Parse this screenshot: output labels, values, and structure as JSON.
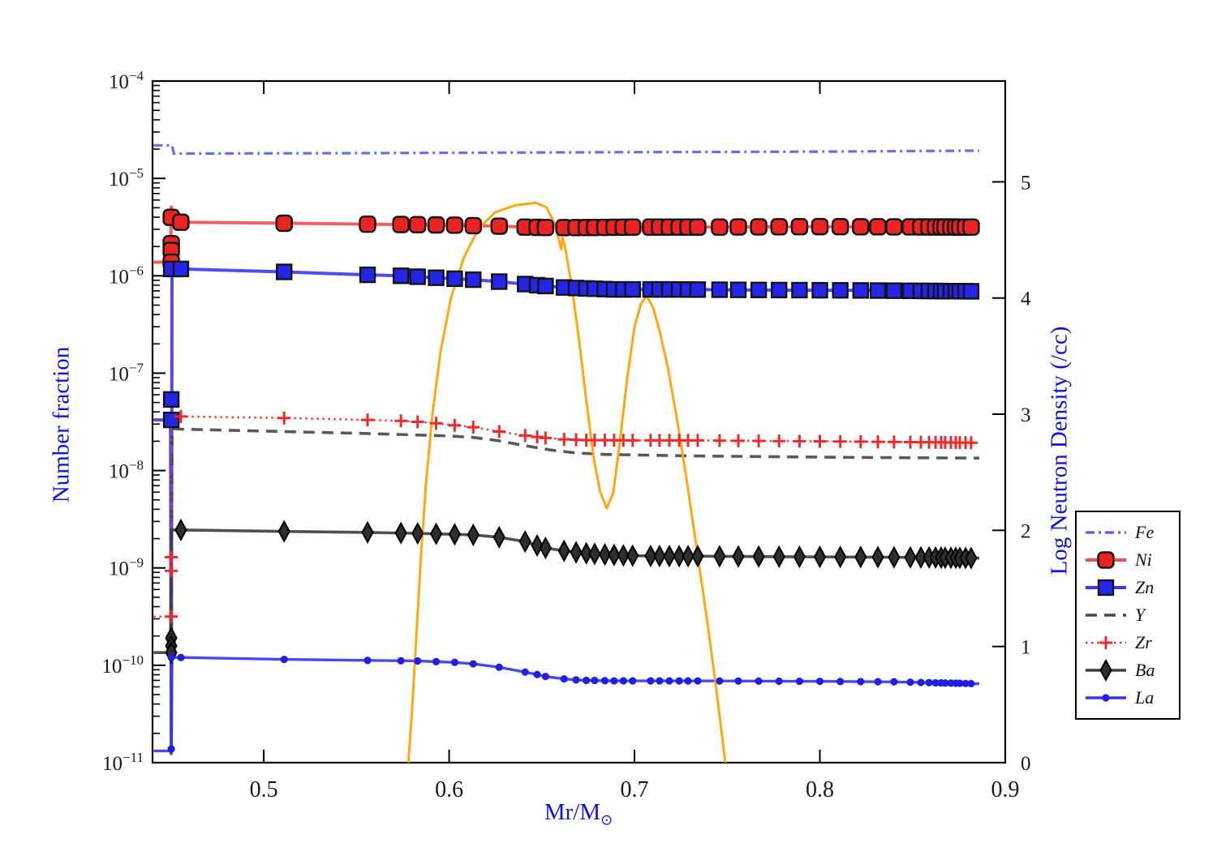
{
  "figure": {
    "xlabel_main": "Mr/M",
    "xlabel_sub": "⊙",
    "ylabel_left": "Number fraction",
    "ylabel_right": "Log Neutron Density (/cc)",
    "label_color": "#1111dd",
    "tick_label_color": "#1a1a1a",
    "background_color": "#ffffff",
    "border_color": "#000000"
  },
  "chart_data": {
    "type": "line",
    "title": "",
    "xlabel": "Mr/M⊙",
    "ylabel_left": "Number fraction",
    "ylabel_right": "Log Neutron Density (/cc)",
    "x_axis": {
      "range": [
        0.44,
        0.9
      ],
      "ticks": [
        0.5,
        0.6,
        0.7,
        0.8,
        0.9
      ]
    },
    "y_axis_left": {
      "scale": "log",
      "tick_exponents": [
        -4,
        -5,
        -6,
        -7,
        -8,
        -9,
        -10,
        -11
      ]
    },
    "y_axis_right": {
      "range": [
        0,
        5.868
      ],
      "ticks": [
        0,
        1,
        2,
        3,
        4,
        5
      ]
    },
    "grid": false,
    "legend_position": "right-outside",
    "legend_entries": [
      "Fe",
      "Ni",
      "Zn",
      "Y",
      "Zr",
      "Ba",
      "La"
    ],
    "markers_x": [
      0.4553,
      0.511,
      0.556,
      0.574,
      0.583,
      0.593,
      0.603,
      0.613,
      0.627,
      0.641,
      0.6475,
      0.652,
      0.662,
      0.6685,
      0.674,
      0.6785,
      0.684,
      0.689,
      0.694,
      0.699,
      0.7087,
      0.7135,
      0.7188,
      0.7241,
      0.7289,
      0.7341,
      0.7459,
      0.756,
      0.767,
      0.778,
      0.789,
      0.8,
      0.811,
      0.822,
      0.8313,
      0.84,
      0.8488,
      0.8545,
      0.8589,
      0.8624,
      0.8654,
      0.8676,
      0.8707,
      0.8733,
      0.8755,
      0.8786,
      0.8816
    ],
    "series": [
      {
        "name": "Fe",
        "axis": "left",
        "color": "#5a5af2",
        "line": "dashdot",
        "line_width": 3.2,
        "marker": "none",
        "marker_fill": "",
        "points": [
          [
            0.4406,
            -4.66
          ],
          [
            0.4505,
            -4.66
          ],
          [
            0.4515,
            -4.745
          ],
          [
            0.56,
            -4.74
          ],
          [
            0.7,
            -4.73
          ],
          [
            0.8,
            -4.725
          ],
          [
            0.886,
            -4.715
          ]
        ],
        "extra_markers": []
      },
      {
        "name": "Ni",
        "axis": "left",
        "color": "#f24c4c",
        "line": "solid",
        "line_width": 4,
        "marker": "roundsquare",
        "marker_fill": "#ea2323",
        "points": [
          [
            0.4406,
            -5.86
          ],
          [
            0.4497,
            -5.86
          ],
          [
            0.4501,
            -5.28
          ],
          [
            0.451,
            -5.44
          ],
          [
            0.4553,
            -5.45
          ],
          [
            0.511,
            -5.46
          ],
          [
            0.556,
            -5.47
          ],
          [
            0.583,
            -5.475
          ],
          [
            0.603,
            -5.48
          ],
          [
            0.613,
            -5.485
          ],
          [
            0.627,
            -5.49
          ],
          [
            0.641,
            -5.5
          ],
          [
            0.655,
            -5.505
          ],
          [
            0.67,
            -5.505
          ],
          [
            0.7,
            -5.5
          ],
          [
            0.74,
            -5.5
          ],
          [
            0.8,
            -5.495
          ],
          [
            0.886,
            -5.5
          ]
        ],
        "extra_markers": [
          [
            0.4501,
            -5.4
          ],
          [
            0.4501,
            -5.67
          ],
          [
            0.4501,
            -5.74
          ],
          [
            0.4501,
            -5.86
          ]
        ]
      },
      {
        "name": "Zn",
        "axis": "left",
        "color": "#3a3aef",
        "line": "solid",
        "line_width": 4,
        "marker": "square",
        "marker_fill": "#2525e9",
        "points": [
          [
            0.4406,
            -7.48
          ],
          [
            0.4497,
            -7.48
          ],
          [
            0.4501,
            -10.9
          ],
          [
            0.4505,
            -5.93
          ],
          [
            0.4553,
            -5.93
          ],
          [
            0.511,
            -5.96
          ],
          [
            0.556,
            -5.99
          ],
          [
            0.574,
            -6.0
          ],
          [
            0.593,
            -6.02
          ],
          [
            0.613,
            -6.04
          ],
          [
            0.627,
            -6.06
          ],
          [
            0.641,
            -6.085
          ],
          [
            0.652,
            -6.105
          ],
          [
            0.662,
            -6.12
          ],
          [
            0.674,
            -6.13
          ],
          [
            0.689,
            -6.14
          ],
          [
            0.72,
            -6.14
          ],
          [
            0.76,
            -6.145
          ],
          [
            0.82,
            -6.15
          ],
          [
            0.886,
            -6.16
          ]
        ],
        "extra_markers": [
          [
            0.4501,
            -5.93
          ],
          [
            0.4501,
            -7.27
          ],
          [
            0.4501,
            -7.48
          ]
        ]
      },
      {
        "name": "Y",
        "axis": "left",
        "color": "#474747",
        "line": "dashed",
        "line_width": 3.6,
        "marker": "none",
        "marker_fill": "",
        "points": [
          [
            0.4501,
            -9.86
          ],
          [
            0.4505,
            -7.57
          ],
          [
            0.4553,
            -7.575
          ],
          [
            0.511,
            -7.6
          ],
          [
            0.556,
            -7.62
          ],
          [
            0.6,
            -7.645
          ],
          [
            0.613,
            -7.66
          ],
          [
            0.627,
            -7.695
          ],
          [
            0.641,
            -7.745
          ],
          [
            0.655,
            -7.79
          ],
          [
            0.6685,
            -7.82
          ],
          [
            0.684,
            -7.835
          ],
          [
            0.7,
            -7.84
          ],
          [
            0.73,
            -7.85
          ],
          [
            0.77,
            -7.857
          ],
          [
            0.82,
            -7.865
          ],
          [
            0.886,
            -7.872
          ]
        ],
        "extra_markers": []
      },
      {
        "name": "Zr",
        "axis": "left",
        "color": "#ec2c2c",
        "line": "dotted",
        "line_width": 2.6,
        "marker": "plus",
        "marker_fill": "#ec2c2c",
        "points": [
          [
            0.4406,
            -9.5
          ],
          [
            0.4499,
            -9.5
          ],
          [
            0.4501,
            -7.44
          ],
          [
            0.4553,
            -7.445
          ],
          [
            0.511,
            -7.46
          ],
          [
            0.556,
            -7.48
          ],
          [
            0.574,
            -7.49
          ],
          [
            0.583,
            -7.5
          ],
          [
            0.593,
            -7.515
          ],
          [
            0.603,
            -7.535
          ],
          [
            0.613,
            -7.555
          ],
          [
            0.627,
            -7.6
          ],
          [
            0.641,
            -7.64
          ],
          [
            0.6475,
            -7.655
          ],
          [
            0.652,
            -7.665
          ],
          [
            0.662,
            -7.68
          ],
          [
            0.674,
            -7.688
          ],
          [
            0.7,
            -7.69
          ],
          [
            0.73,
            -7.69
          ],
          [
            0.76,
            -7.695
          ],
          [
            0.8,
            -7.7
          ],
          [
            0.84,
            -7.706
          ],
          [
            0.886,
            -7.715
          ]
        ],
        "extra_markers": [
          [
            0.4501,
            -8.89
          ],
          [
            0.4501,
            -9.03
          ],
          [
            0.4501,
            -9.5
          ]
        ]
      },
      {
        "name": "Ba",
        "axis": "left",
        "color": "#3d3d3d",
        "line": "solid",
        "line_width": 3.6,
        "marker": "diamond",
        "marker_fill": "#2e2e2e",
        "points": [
          [
            0.4406,
            -9.87
          ],
          [
            0.4497,
            -9.87
          ],
          [
            0.4501,
            -8.61
          ],
          [
            0.4553,
            -8.61
          ],
          [
            0.511,
            -8.625
          ],
          [
            0.556,
            -8.635
          ],
          [
            0.583,
            -8.645
          ],
          [
            0.613,
            -8.66
          ],
          [
            0.627,
            -8.685
          ],
          [
            0.641,
            -8.73
          ],
          [
            0.6475,
            -8.77
          ],
          [
            0.652,
            -8.795
          ],
          [
            0.662,
            -8.825
          ],
          [
            0.6685,
            -8.84
          ],
          [
            0.674,
            -8.85
          ],
          [
            0.684,
            -8.862
          ],
          [
            0.694,
            -8.872
          ],
          [
            0.71,
            -8.878
          ],
          [
            0.74,
            -8.88
          ],
          [
            0.78,
            -8.885
          ],
          [
            0.82,
            -8.888
          ],
          [
            0.86,
            -8.893
          ],
          [
            0.886,
            -8.9
          ]
        ],
        "extra_markers": [
          [
            0.4501,
            -9.72
          ],
          [
            0.4501,
            -9.8
          ],
          [
            0.4501,
            -9.87
          ]
        ]
      },
      {
        "name": "La",
        "axis": "left",
        "color": "#3434ea",
        "line": "solid",
        "line_width": 3.4,
        "marker": "dot",
        "marker_fill": "#2020e0",
        "points": [
          [
            0.4406,
            -10.88
          ],
          [
            0.4497,
            -10.88
          ],
          [
            0.4501,
            -10.92
          ],
          [
            0.4505,
            -9.92
          ],
          [
            0.4553,
            -9.92
          ],
          [
            0.511,
            -9.94
          ],
          [
            0.556,
            -9.95
          ],
          [
            0.583,
            -9.955
          ],
          [
            0.603,
            -9.97
          ],
          [
            0.613,
            -9.985
          ],
          [
            0.627,
            -10.02
          ],
          [
            0.641,
            -10.07
          ],
          [
            0.6475,
            -10.095
          ],
          [
            0.652,
            -10.115
          ],
          [
            0.662,
            -10.14
          ],
          [
            0.6685,
            -10.15
          ],
          [
            0.674,
            -10.155
          ],
          [
            0.689,
            -10.16
          ],
          [
            0.72,
            -10.16
          ],
          [
            0.76,
            -10.162
          ],
          [
            0.8,
            -10.165
          ],
          [
            0.84,
            -10.17
          ],
          [
            0.886,
            -10.19
          ]
        ],
        "extra_markers": [
          [
            0.4501,
            -9.92
          ],
          [
            0.4501,
            -10.86
          ]
        ]
      }
    ],
    "neutron_density_series": {
      "name": "neutron-density",
      "axis": "right",
      "color": "#ffa408",
      "line": "solid",
      "line_width": 3,
      "points": [
        [
          0.578,
          0.0
        ],
        [
          0.58,
          0.45
        ],
        [
          0.582,
          1.0
        ],
        [
          0.5845,
          1.7
        ],
        [
          0.5875,
          2.4
        ],
        [
          0.591,
          3.0
        ],
        [
          0.5955,
          3.55
        ],
        [
          0.601,
          4.0
        ],
        [
          0.608,
          4.35
        ],
        [
          0.616,
          4.6
        ],
        [
          0.625,
          4.74
        ],
        [
          0.636,
          4.8
        ],
        [
          0.647,
          4.82
        ],
        [
          0.6525,
          4.78
        ],
        [
          0.657,
          4.64
        ],
        [
          0.6605,
          4.42
        ],
        [
          0.6612,
          4.52
        ],
        [
          0.6625,
          4.44
        ],
        [
          0.666,
          4.12
        ],
        [
          0.67,
          3.65
        ],
        [
          0.674,
          3.12
        ],
        [
          0.678,
          2.62
        ],
        [
          0.6815,
          2.33
        ],
        [
          0.685,
          2.19
        ],
        [
          0.6885,
          2.32
        ],
        [
          0.692,
          2.75
        ],
        [
          0.696,
          3.3
        ],
        [
          0.7,
          3.75
        ],
        [
          0.7035,
          3.95
        ],
        [
          0.7065,
          4.02
        ],
        [
          0.71,
          3.92
        ],
        [
          0.7135,
          3.72
        ],
        [
          0.718,
          3.4
        ],
        [
          0.723,
          2.95
        ],
        [
          0.728,
          2.45
        ],
        [
          0.7335,
          1.85
        ],
        [
          0.739,
          1.25
        ],
        [
          0.744,
          0.65
        ],
        [
          0.749,
          0.0
        ]
      ]
    }
  }
}
